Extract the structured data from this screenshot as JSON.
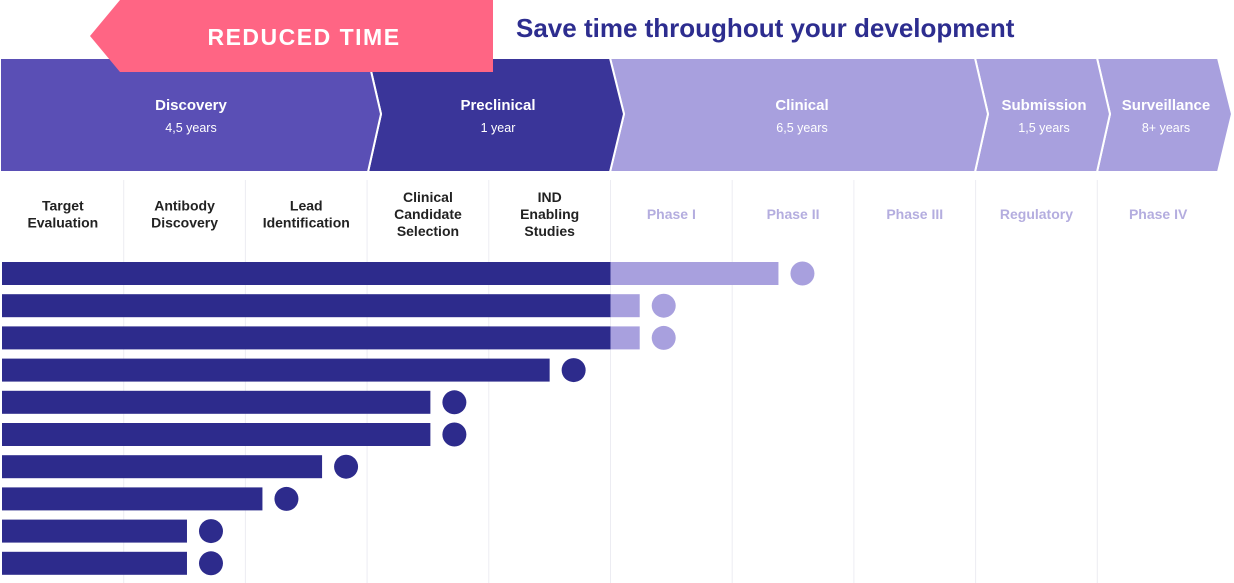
{
  "banner": {
    "label": "REDUCED TIME"
  },
  "heading": "Save time throughout your development",
  "colors": {
    "banner": "#ff6584",
    "discovery": "#5a4fb5",
    "preclinical": "#3a3599",
    "clinical": "#a8a0de",
    "dark_bar": "#2d2b8c",
    "light_bar": "#a8a0de",
    "heading": "#2d2d8f",
    "grid": "#ececf2"
  },
  "stages": [
    {
      "name": "Discovery",
      "duration": "4,5 years",
      "tone": "discovery"
    },
    {
      "name": "Preclinical",
      "duration": "1 year",
      "tone": "preclinical"
    },
    {
      "name": "Clinical",
      "duration": "6,5 years",
      "tone": "clinical"
    },
    {
      "name": "Submission",
      "duration": "1,5 years",
      "tone": "clinical"
    },
    {
      "name": "Surveillance",
      "duration": "8+ years",
      "tone": "clinical"
    }
  ],
  "columns": [
    {
      "lines": [
        "Target",
        "Evaluation"
      ],
      "muted": false
    },
    {
      "lines": [
        "Antibody",
        "Discovery"
      ],
      "muted": false
    },
    {
      "lines": [
        "Lead",
        "Identification"
      ],
      "muted": false
    },
    {
      "lines": [
        "Clinical",
        "Candidate",
        "Selection"
      ],
      "muted": false
    },
    {
      "lines": [
        "IND",
        "Enabling",
        "Studies"
      ],
      "muted": false
    },
    {
      "lines": [
        "Phase I"
      ],
      "muted": true
    },
    {
      "lines": [
        "Phase II"
      ],
      "muted": true
    },
    {
      "lines": [
        "Phase III"
      ],
      "muted": true
    },
    {
      "lines": [
        "Regulatory"
      ],
      "muted": true
    },
    {
      "lines": [
        "Phase IV"
      ],
      "muted": true
    }
  ],
  "chart_data": {
    "type": "bar",
    "unit": "columns",
    "rows": [
      {
        "preclinical_end": 5,
        "clinical_end": 6.38,
        "status": "clinical"
      },
      {
        "preclinical_end": 5,
        "clinical_end": 5.24,
        "status": "clinical"
      },
      {
        "preclinical_end": 5,
        "clinical_end": 5.24,
        "status": "clinical"
      },
      {
        "preclinical_end": 4.5,
        "clinical_end": null,
        "status": "preclinical"
      },
      {
        "preclinical_end": 3.52,
        "clinical_end": null,
        "status": "preclinical"
      },
      {
        "preclinical_end": 3.52,
        "clinical_end": null,
        "status": "preclinical"
      },
      {
        "preclinical_end": 2.63,
        "clinical_end": null,
        "status": "preclinical"
      },
      {
        "preclinical_end": 2.14,
        "clinical_end": null,
        "status": "preclinical"
      },
      {
        "preclinical_end": 1.52,
        "clinical_end": null,
        "status": "preclinical"
      },
      {
        "preclinical_end": 1.52,
        "clinical_end": null,
        "status": "preclinical"
      }
    ]
  }
}
